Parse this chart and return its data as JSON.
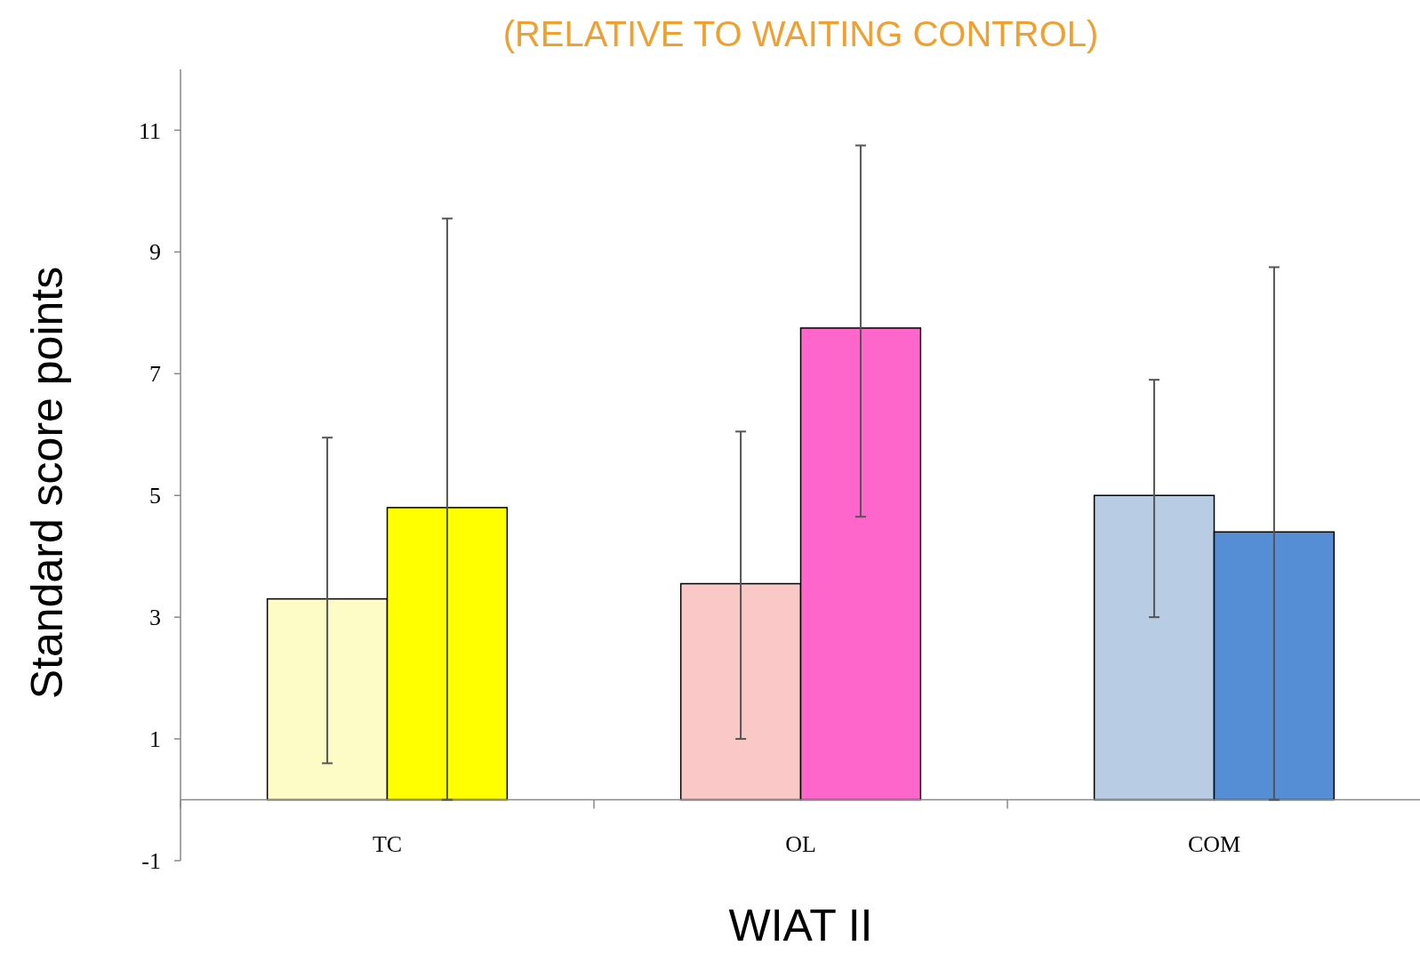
{
  "chart_data": {
    "type": "bar",
    "title": "(RELATIVE TO WAITING CONTROL)",
    "xlabel": "WIAT II",
    "ylabel": "Standard score points",
    "categories": [
      "TC",
      "OL",
      "COM"
    ],
    "series": [
      {
        "colors": [
          "#fdfbc6",
          "#fbc8c8",
          "#b8cce4"
        ],
        "values": [
          3.3,
          3.55,
          5.0
        ],
        "errors": [
          [
            0.6,
            5.95
          ],
          [
            1.0,
            6.05
          ],
          [
            3.0,
            6.9
          ]
        ]
      },
      {
        "colors": [
          "#ffff00",
          "#ff66cc",
          "#558ed5"
        ],
        "values": [
          4.8,
          7.75,
          4.4
        ],
        "errors": [
          [
            0,
            9.55
          ],
          [
            4.65,
            10.75
          ],
          [
            0,
            8.75
          ]
        ]
      }
    ],
    "ylim": [
      -1,
      12
    ],
    "yticks": [
      -1,
      1,
      3,
      5,
      7,
      9,
      11
    ],
    "grid": false
  }
}
